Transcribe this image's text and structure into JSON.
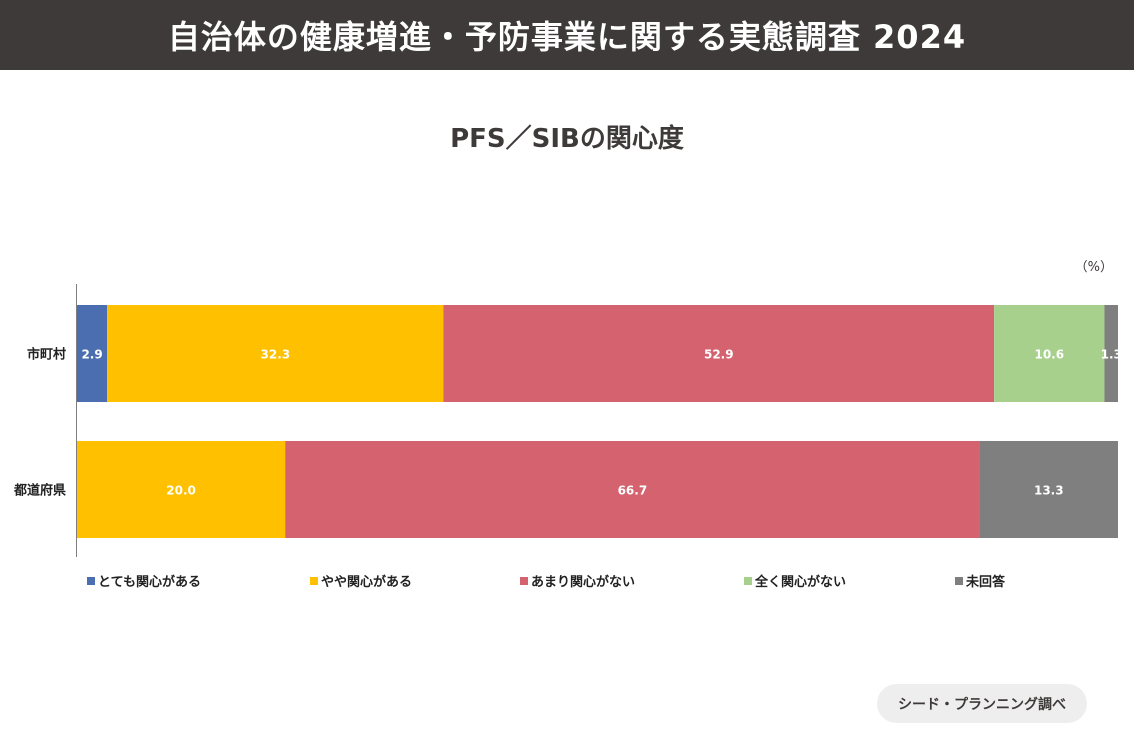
{
  "header": {
    "title": "自治体の健康増進・予防事業に関する実態調査 2024"
  },
  "source": {
    "label": "シード・プランニング調べ"
  },
  "chart_data": {
    "type": "bar",
    "orientation": "horizontal",
    "stacked": true,
    "title": "PFS／SIBの関心度",
    "unit_label": "（%）",
    "categories": [
      "市町村",
      "都道府県"
    ],
    "series": [
      {
        "name": "とても関心がある",
        "color": "#4a6eb0",
        "values": [
          2.9,
          0
        ]
      },
      {
        "name": "やや関心がある",
        "color": "#ffc000",
        "values": [
          32.3,
          20.0
        ]
      },
      {
        "name": "あまり関心がない",
        "color": "#d4636f",
        "values": [
          52.9,
          66.7
        ]
      },
      {
        "name": "全く関心がない",
        "color": "#a8d08d",
        "values": [
          10.6,
          0
        ]
      },
      {
        "name": "未回答",
        "color": "#7f7f7f",
        "values": [
          1.3,
          13.3
        ]
      }
    ],
    "xlim": [
      0,
      100
    ],
    "grid": false,
    "legend_position": "bottom"
  }
}
